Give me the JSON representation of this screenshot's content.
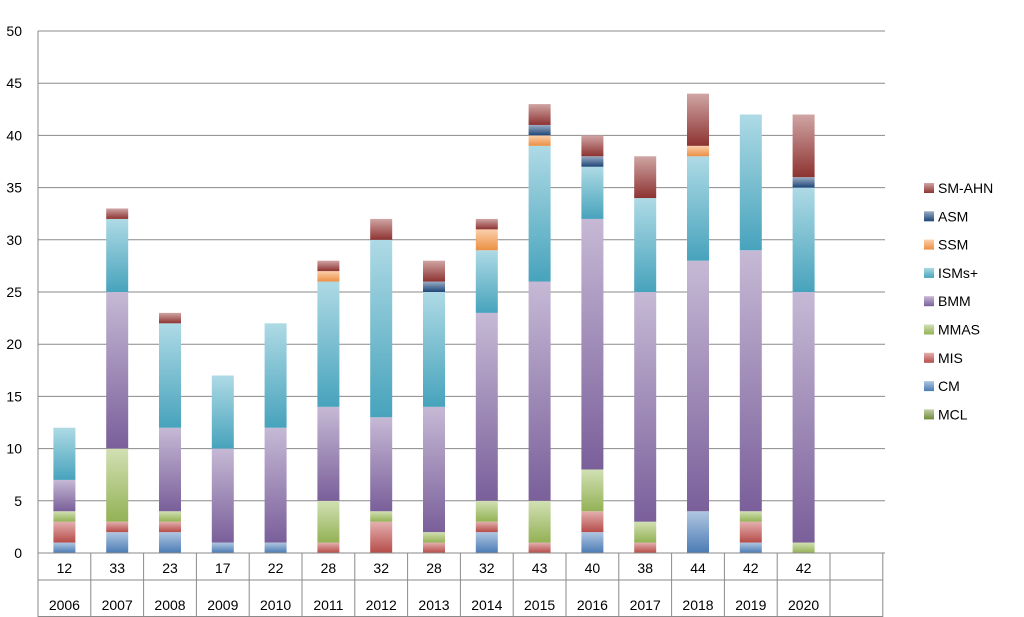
{
  "chart_data": {
    "type": "bar",
    "stacked": true,
    "title": "",
    "xlabel": "",
    "ylabel": "",
    "ylim": [
      0,
      50
    ],
    "yticks": [
      0,
      5,
      10,
      15,
      20,
      25,
      30,
      35,
      40,
      45,
      50
    ],
    "grid": true,
    "legend_position": "right",
    "categories": [
      "2006",
      "2007",
      "2008",
      "2009",
      "2010",
      "2011",
      "2012",
      "2013",
      "2014",
      "2015",
      "2016",
      "2017",
      "2018",
      "2019",
      "2020"
    ],
    "totals": [
      "12",
      "33",
      "23",
      "17",
      "22",
      "28",
      "32",
      "28",
      "32",
      "43",
      "40",
      "38",
      "44",
      "42",
      "42"
    ],
    "series": [
      {
        "name": "MCL",
        "color": "#77933c",
        "values": [
          0,
          0,
          0,
          0,
          0,
          0,
          0,
          0,
          0,
          0,
          0,
          0,
          0,
          0,
          0
        ]
      },
      {
        "name": "CM",
        "color": "#4f81bd",
        "values": [
          1,
          2,
          2,
          1,
          1,
          0,
          0,
          0,
          2,
          0,
          2,
          0,
          4,
          1,
          0
        ]
      },
      {
        "name": "MIS",
        "color": "#c0504d",
        "values": [
          2,
          1,
          1,
          0,
          0,
          1,
          3,
          1,
          1,
          1,
          2,
          1,
          0,
          2,
          0
        ]
      },
      {
        "name": "MMAS",
        "color": "#9bbb59",
        "values": [
          1,
          7,
          1,
          0,
          0,
          4,
          1,
          1,
          2,
          4,
          4,
          2,
          0,
          1,
          1
        ]
      },
      {
        "name": "BMM",
        "color": "#8064a2",
        "values": [
          3,
          15,
          8,
          9,
          11,
          9,
          9,
          12,
          18,
          21,
          24,
          22,
          24,
          25,
          24
        ]
      },
      {
        "name": "ISMs+",
        "color": "#4bacc6",
        "values": [
          5,
          7,
          10,
          7,
          10,
          12,
          17,
          11,
          6,
          13,
          5,
          9,
          10,
          13,
          10
        ]
      },
      {
        "name": "SSM",
        "color": "#f79646",
        "values": [
          0,
          0,
          0,
          0,
          0,
          1,
          0,
          0,
          2,
          1,
          0,
          0,
          1,
          0,
          0
        ]
      },
      {
        "name": "ASM",
        "color": "#1f497d",
        "values": [
          0,
          0,
          0,
          0,
          0,
          0,
          0,
          1,
          0,
          1,
          1,
          0,
          0,
          0,
          1
        ]
      },
      {
        "name": "SM-AHN",
        "color": "#943634",
        "values": [
          0,
          1,
          1,
          0,
          0,
          1,
          2,
          2,
          1,
          2,
          2,
          4,
          5,
          0,
          6
        ]
      }
    ]
  }
}
